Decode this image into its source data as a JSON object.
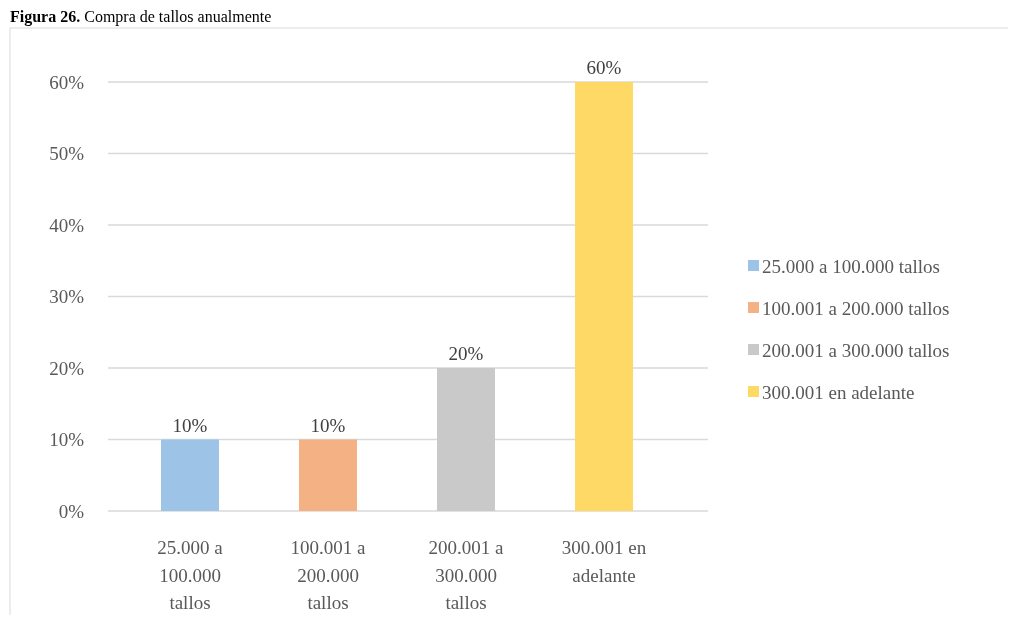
{
  "chart_data": {
    "type": "bar",
    "title": "Figura 26. Compra de tallos anualmente",
    "categories": [
      "25.000 a 100.000 tallos",
      "100.001 a 200.000 tallos",
      "200.001 a 300.000 tallos",
      "300.001 en adelante"
    ],
    "series": [
      {
        "name": "25.000 a 100.000 tallos",
        "color": "#9dc3e6",
        "values": [
          10,
          null,
          null,
          null
        ],
        "value_labels": [
          "10%",
          null,
          null,
          null
        ]
      },
      {
        "name": "100.001 a 200.000 tallos",
        "color": "#f4b183",
        "values": [
          null,
          10,
          null,
          null
        ],
        "value_labels": [
          null,
          "10%",
          null,
          null
        ]
      },
      {
        "name": "200.001 a 300.000 tallos",
        "color": "#c9c9c9",
        "values": [
          null,
          null,
          20,
          null
        ],
        "value_labels": [
          null,
          null,
          "20%",
          null
        ]
      },
      {
        "name": "300.001 en adelante",
        "color": "#ffd966",
        "values": [
          null,
          null,
          null,
          60
        ],
        "value_labels": [
          null,
          null,
          null,
          "60%"
        ]
      }
    ],
    "stacked": true,
    "ylim": [
      0,
      60
    ],
    "yticks": [
      {
        "value": 0,
        "label": "0%"
      },
      {
        "value": 10,
        "label": "10%"
      },
      {
        "value": 20,
        "label": "20%"
      },
      {
        "value": 30,
        "label": "30%"
      },
      {
        "value": 40,
        "label": "40%"
      },
      {
        "value": 50,
        "label": "50%"
      },
      {
        "value": 60,
        "label": "60%"
      }
    ],
    "grid": "y",
    "legend": "right"
  }
}
